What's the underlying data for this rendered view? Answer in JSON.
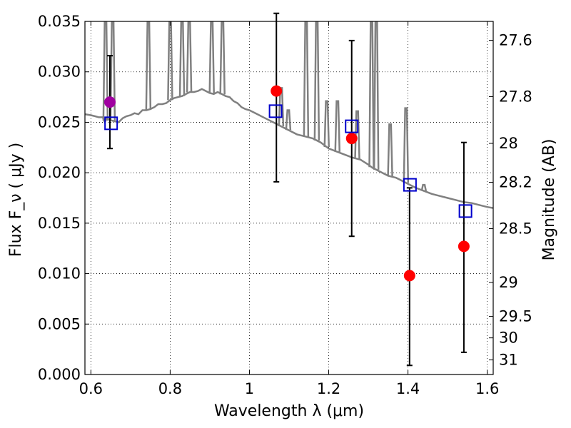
{
  "chart_data": {
    "type": "scatter",
    "xlabel": "Wavelength  λ (μm)",
    "ylabel": "Flux  F_ν  ( μJy )",
    "ylabel_right": "Magnitude (AB)",
    "xlim": [
      0.585,
      1.615
    ],
    "ylim": [
      0.0,
      0.035
    ],
    "x_ticks": [
      {
        "value": 0.6,
        "label": "0.6"
      },
      {
        "value": 0.8,
        "label": "0.8"
      },
      {
        "value": 1.0,
        "label": "1"
      },
      {
        "value": 1.2,
        "label": "1.2"
      },
      {
        "value": 1.4,
        "label": "1.4"
      },
      {
        "value": 1.6,
        "label": "1.6"
      }
    ],
    "y_ticks": [
      {
        "value": 0.0,
        "label": "0.000"
      },
      {
        "value": 0.005,
        "label": "0.005"
      },
      {
        "value": 0.01,
        "label": "0.010"
      },
      {
        "value": 0.015,
        "label": "0.015"
      },
      {
        "value": 0.02,
        "label": "0.020"
      },
      {
        "value": 0.025,
        "label": "0.025"
      },
      {
        "value": 0.03,
        "label": "0.030"
      },
      {
        "value": 0.035,
        "label": "0.035"
      }
    ],
    "right_ticks": [
      {
        "mag": 27.6,
        "label": "27.6"
      },
      {
        "mag": 27.8,
        "label": "27.8"
      },
      {
        "mag": 28.0,
        "label": "28"
      },
      {
        "mag": 28.2,
        "label": "28.2"
      },
      {
        "mag": 28.5,
        "label": "28.5"
      },
      {
        "mag": 29.0,
        "label": "29"
      },
      {
        "mag": 29.5,
        "label": "29.5"
      },
      {
        "mag": 30.0,
        "label": "30"
      },
      {
        "mag": 31.0,
        "label": "31"
      }
    ],
    "grid": true,
    "colors": {
      "template": "#808080",
      "observed": "#ff0000",
      "observed_first": "#a000a0",
      "model": "#0000cc",
      "errorbar": "#000000"
    },
    "observed": [
      {
        "x": 0.648,
        "y": 0.027,
        "yerr_low": 0.0224,
        "yerr_high": 0.0316
      },
      {
        "x": 1.068,
        "y": 0.0281,
        "yerr_low": 0.0191,
        "yerr_high": 0.0358
      },
      {
        "x": 1.258,
        "y": 0.0234,
        "yerr_low": 0.0137,
        "yerr_high": 0.0331
      },
      {
        "x": 1.404,
        "y": 0.0098,
        "yerr_low": 0.0009,
        "yerr_high": 0.0185
      },
      {
        "x": 1.541,
        "y": 0.0127,
        "yerr_low": 0.0022,
        "yerr_high": 0.023
      }
    ],
    "model_points": [
      {
        "x": 0.651,
        "y": 0.0249
      },
      {
        "x": 1.066,
        "y": 0.0261
      },
      {
        "x": 1.258,
        "y": 0.0246
      },
      {
        "x": 1.405,
        "y": 0.0188
      },
      {
        "x": 1.545,
        "y": 0.0162
      }
    ],
    "template": {
      "x": [
        0.585,
        0.6,
        0.61,
        0.62,
        0.63,
        0.635,
        0.64,
        0.645,
        0.65,
        0.66,
        0.67,
        0.68,
        0.69,
        0.7,
        0.71,
        0.72,
        0.73,
        0.74,
        0.75,
        0.76,
        0.77,
        0.78,
        0.79,
        0.8,
        0.81,
        0.82,
        0.83,
        0.84,
        0.85,
        0.86,
        0.87,
        0.88,
        0.89,
        0.9,
        0.91,
        0.92,
        0.93,
        0.94,
        0.95,
        0.96,
        0.97,
        0.98,
        0.99,
        1.0,
        1.02,
        1.04,
        1.06,
        1.08,
        1.1,
        1.12,
        1.14,
        1.16,
        1.18,
        1.2,
        1.22,
        1.24,
        1.26,
        1.28,
        1.3,
        1.31,
        1.32,
        1.33,
        1.34,
        1.35,
        1.36,
        1.37,
        1.38,
        1.39,
        1.4,
        1.42,
        1.44,
        1.46,
        1.48,
        1.5,
        1.52,
        1.54,
        1.56,
        1.58,
        1.6,
        1.615
      ],
      "y": [
        0.0258,
        0.0257,
        0.0256,
        0.0255,
        0.0255,
        0.025,
        0.0254,
        0.0253,
        0.0252,
        0.0251,
        0.025,
        0.0254,
        0.0256,
        0.0257,
        0.0259,
        0.0258,
        0.0262,
        0.0262,
        0.0263,
        0.0265,
        0.0268,
        0.0268,
        0.0269,
        0.0272,
        0.0274,
        0.0275,
        0.0276,
        0.0278,
        0.028,
        0.028,
        0.0281,
        0.0283,
        0.0281,
        0.0279,
        0.0278,
        0.028,
        0.0278,
        0.0276,
        0.0275,
        0.0271,
        0.0269,
        0.0265,
        0.0263,
        0.0262,
        0.0258,
        0.0254,
        0.025,
        0.0246,
        0.0242,
        0.0238,
        0.0236,
        0.0234,
        0.023,
        0.0224,
        0.0221,
        0.0218,
        0.0215,
        0.0213,
        0.0208,
        0.0205,
        0.0203,
        0.0201,
        0.0199,
        0.0197,
        0.0196,
        0.0195,
        0.0193,
        0.0191,
        0.0189,
        0.0185,
        0.0182,
        0.0179,
        0.0177,
        0.0175,
        0.0173,
        0.0171,
        0.017,
        0.0168,
        0.0166,
        0.0165
      ]
    },
    "emission_lines": [
      {
        "x": 0.637,
        "peak": 0.035
      },
      {
        "x": 0.655,
        "peak": 0.035
      },
      {
        "x": 0.745,
        "peak": 0.035
      },
      {
        "x": 0.8,
        "peak": 0.035
      },
      {
        "x": 0.83,
        "peak": 0.035
      },
      {
        "x": 0.848,
        "peak": 0.035
      },
      {
        "x": 0.905,
        "peak": 0.035
      },
      {
        "x": 0.932,
        "peak": 0.035
      },
      {
        "x": 1.143,
        "peak": 0.035
      },
      {
        "x": 1.17,
        "peak": 0.035
      },
      {
        "x": 1.308,
        "peak": 0.035
      },
      {
        "x": 1.32,
        "peak": 0.035
      },
      {
        "x": 1.08,
        "peak": 0.0284
      },
      {
        "x": 1.098,
        "peak": 0.0262
      },
      {
        "x": 1.195,
        "peak": 0.0271
      },
      {
        "x": 1.222,
        "peak": 0.0271
      },
      {
        "x": 1.272,
        "peak": 0.0261
      },
      {
        "x": 1.355,
        "peak": 0.0248
      },
      {
        "x": 1.395,
        "peak": 0.0264
      },
      {
        "x": 1.44,
        "peak": 0.0188
      }
    ]
  }
}
